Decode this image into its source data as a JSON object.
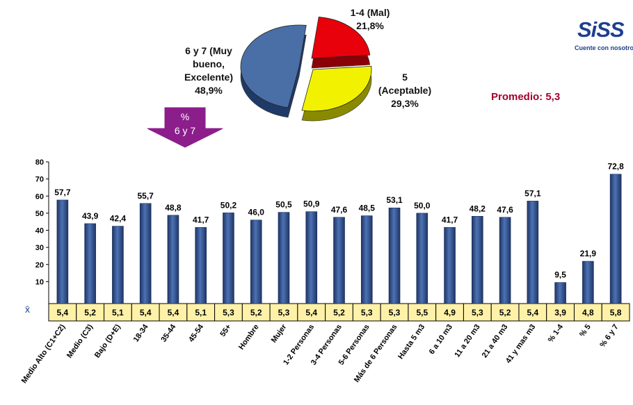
{
  "pie": {
    "slices": [
      {
        "label_lines": [
          "1-4 (Mal)"
        ],
        "value_text": "21,8%",
        "value": 21.8,
        "color": "#e8000b"
      },
      {
        "label_lines": [
          "5",
          "(Aceptable)"
        ],
        "value_text": "29,3%",
        "value": 29.3,
        "color": "#f2f200"
      },
      {
        "label_lines": [
          "6 y 7 (Muy",
          "bueno,",
          "Excelente)"
        ],
        "value_text": "48,9%",
        "value": 48.9,
        "color": "#4a6fa6"
      }
    ]
  },
  "promedio": "Promedio: 5,3",
  "arrow": {
    "line1": "%",
    "line2": "6 y 7",
    "color": "#8c1e8c"
  },
  "logo": {
    "name": "SiSS",
    "tagline": "Cuente con nosotros"
  },
  "xbar_symbol": "x̄",
  "chart_data": {
    "type": "bar",
    "categories": [
      "Medio Alto (C1+C2)",
      "Medio (C3)",
      "Bajo (D+E)",
      "18-34",
      "35-44",
      "45-54",
      "55+",
      "Hombre",
      "Mujer",
      "1-2 Personas",
      "3-4 Personas",
      "5-6 Personas",
      "Más de 6 Personas",
      "Hasta 5 m3",
      "6 a 10 m3",
      "11 a 20 m3",
      "21 a 40 m3",
      "41 y mas m3",
      "% 1-4",
      "% 5",
      "% 6 y 7"
    ],
    "values": [
      57.7,
      43.9,
      42.4,
      55.7,
      48.8,
      41.7,
      50.2,
      46.0,
      50.5,
      50.9,
      47.6,
      48.5,
      53.1,
      50.0,
      41.7,
      48.2,
      47.6,
      57.1,
      9.5,
      21.9,
      72.8
    ],
    "value_labels": [
      "57,7",
      "43,9",
      "42,4",
      "55,7",
      "48,8",
      "41,7",
      "50,2",
      "46,0",
      "50,5",
      "50,9",
      "47,6",
      "48,5",
      "53,1",
      "50,0",
      "41,7",
      "48,2",
      "47,6",
      "57,1",
      "9,5",
      "21,9",
      "72,8"
    ],
    "averages": [
      "5,4",
      "5,2",
      "5,1",
      "5,4",
      "5,4",
      "5,1",
      "5,3",
      "5,2",
      "5,3",
      "5,4",
      "5,2",
      "5,3",
      "5,3",
      "5,5",
      "4,9",
      "5,3",
      "5,2",
      "5,4",
      "3,9",
      "4,8",
      "5,8"
    ],
    "yticks": [
      10,
      20,
      30,
      40,
      50,
      60,
      70,
      80
    ],
    "ylim": [
      0,
      80
    ],
    "bar_color": "#2f4f8f",
    "average_row_color": "#fff2a8"
  }
}
